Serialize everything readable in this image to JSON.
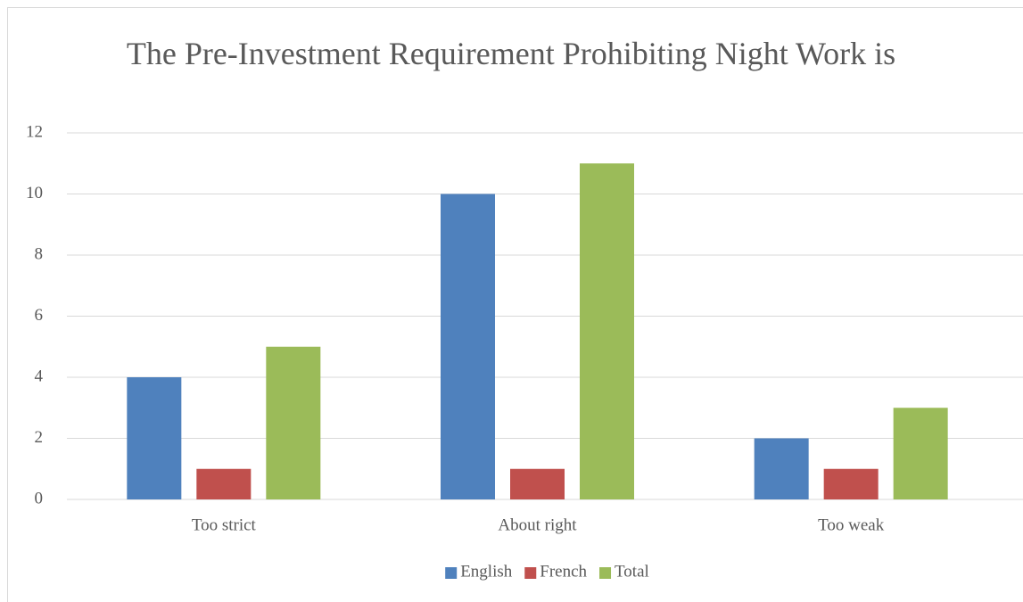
{
  "chart_data": {
    "type": "bar",
    "title": "The Pre-Investment Requirement Prohibiting Night Work is",
    "categories": [
      "Too strict",
      "About right",
      "Too weak"
    ],
    "series": [
      {
        "name": "English",
        "color": "#4f81bd",
        "values": [
          4,
          10,
          2
        ]
      },
      {
        "name": "French",
        "color": "#c0504d",
        "values": [
          1,
          1,
          1
        ]
      },
      {
        "name": "Total",
        "color": "#9bbb59",
        "values": [
          5,
          11,
          3
        ]
      }
    ],
    "ylim": [
      0,
      12
    ],
    "yticks": [
      0,
      2,
      4,
      6,
      8,
      10,
      12
    ],
    "grid": true,
    "legend": "bottom"
  }
}
